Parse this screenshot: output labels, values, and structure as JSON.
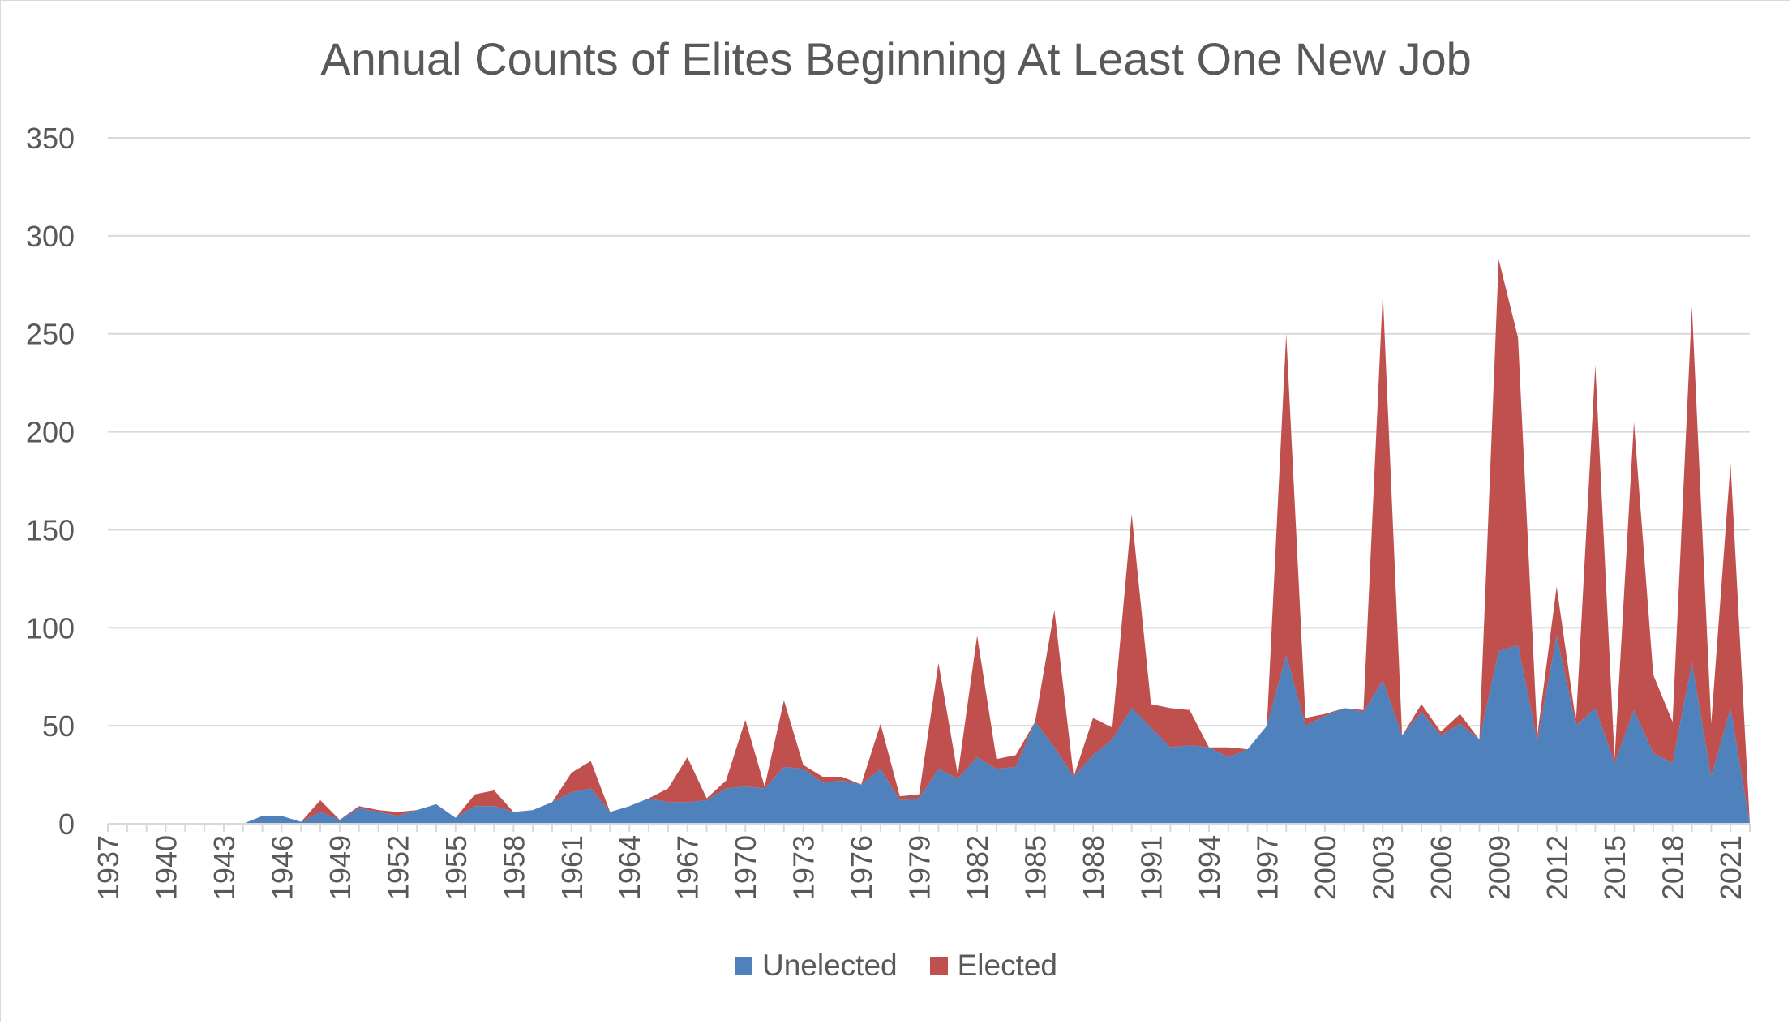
{
  "chart_data": {
    "type": "area",
    "stacked": true,
    "title": "Annual Counts of Elites Beginning At Least One New Job",
    "xlabel": "",
    "ylabel": "",
    "ylim": [
      0,
      350
    ],
    "yticks": [
      0,
      50,
      100,
      150,
      200,
      250,
      300,
      350
    ],
    "grid": true,
    "legend_position": "bottom",
    "x": [
      1937,
      1938,
      1939,
      1940,
      1941,
      1942,
      1943,
      1944,
      1945,
      1946,
      1947,
      1948,
      1949,
      1950,
      1951,
      1952,
      1953,
      1954,
      1955,
      1956,
      1957,
      1958,
      1959,
      1960,
      1961,
      1962,
      1963,
      1964,
      1965,
      1966,
      1967,
      1968,
      1969,
      1970,
      1971,
      1972,
      1973,
      1974,
      1975,
      1976,
      1977,
      1978,
      1979,
      1980,
      1981,
      1982,
      1983,
      1984,
      1985,
      1986,
      1987,
      1988,
      1989,
      1990,
      1991,
      1992,
      1993,
      1994,
      1995,
      1996,
      1997,
      1998,
      1999,
      2000,
      2001,
      2002,
      2003,
      2004,
      2005,
      2006,
      2007,
      2008,
      2009,
      2010,
      2011,
      2012,
      2013,
      2014,
      2015,
      2016,
      2017,
      2018,
      2019,
      2020,
      2021,
      2022
    ],
    "xtick_labels": [
      "1937",
      "1940",
      "1943",
      "1946",
      "1949",
      "1952",
      "1955",
      "1958",
      "1961",
      "1964",
      "1967",
      "1970",
      "1973",
      "1976",
      "1979",
      "1982",
      "1985",
      "1988",
      "1991",
      "1994",
      "1997",
      "2000",
      "2003",
      "2006",
      "2009",
      "2012",
      "2015",
      "2018",
      "2021"
    ],
    "series": [
      {
        "name": "Unelected",
        "color": "#4f81bd",
        "values": [
          0,
          0,
          0,
          0,
          0,
          0,
          0,
          0,
          4,
          4,
          1,
          6,
          2,
          8,
          6,
          4,
          7,
          10,
          3,
          9,
          9,
          6,
          7,
          11,
          16,
          18,
          6,
          9,
          13,
          11,
          11,
          12,
          18,
          19,
          18,
          29,
          28,
          21,
          22,
          20,
          28,
          12,
          13,
          28,
          23,
          34,
          28,
          29,
          52,
          39,
          24,
          35,
          43,
          59,
          49,
          39,
          40,
          39,
          34,
          38,
          50,
          86,
          50,
          55,
          59,
          57,
          73,
          45,
          57,
          45,
          51,
          43,
          88,
          91,
          42,
          96,
          50,
          59,
          31,
          58,
          36,
          31,
          82,
          24,
          59,
          0
        ]
      },
      {
        "name": "Elected",
        "color": "#c0504d",
        "values": [
          0,
          0,
          0,
          0,
          0,
          0,
          0,
          0,
          0,
          0,
          0,
          6,
          0,
          1,
          1,
          2,
          0,
          0,
          0,
          6,
          8,
          0,
          0,
          0,
          10,
          14,
          0,
          0,
          0,
          7,
          23,
          1,
          4,
          34,
          1,
          34,
          2,
          3,
          2,
          0,
          23,
          2,
          2,
          54,
          2,
          62,
          5,
          6,
          0,
          70,
          0,
          19,
          6,
          99,
          12,
          20,
          18,
          0,
          5,
          0,
          0,
          164,
          4,
          1,
          0,
          1,
          198,
          0,
          4,
          2,
          5,
          0,
          200,
          157,
          3,
          25,
          2,
          175,
          2,
          147,
          40,
          21,
          182,
          27,
          125,
          0
        ]
      }
    ]
  }
}
